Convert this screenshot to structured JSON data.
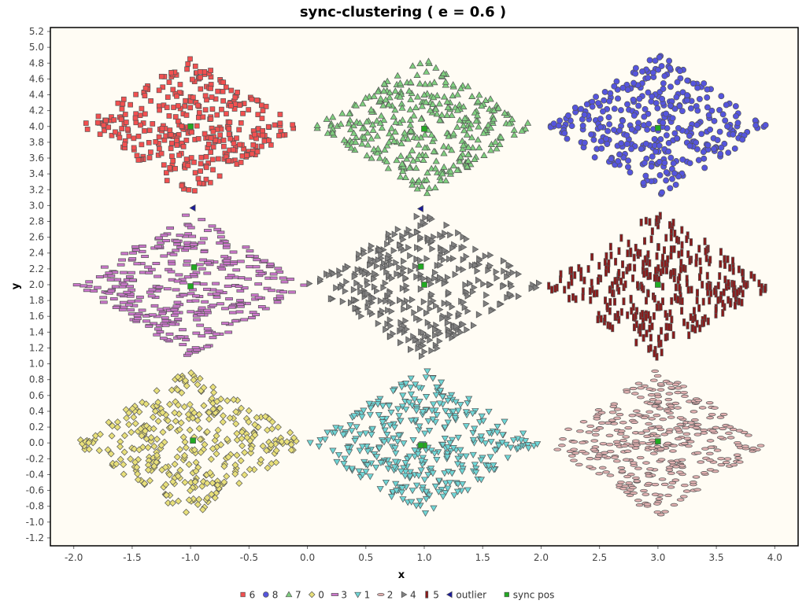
{
  "chart_data": {
    "type": "scatter",
    "title": "sync-clustering ( e = 0.6 )",
    "xlabel": "x",
    "ylabel": "y",
    "xlim": [
      -2.2,
      4.2
    ],
    "ylim": [
      -1.3,
      5.25
    ],
    "xticks": [
      "-2.0",
      "-1.5",
      "-1.0",
      "-0.5",
      "0.0",
      "0.5",
      "1.0",
      "1.5",
      "2.0",
      "2.5",
      "3.0",
      "3.5",
      "4.0"
    ],
    "yticks": [
      "-1.2",
      "-1.0",
      "-0.8",
      "-0.6",
      "-0.4",
      "-0.2",
      "0.0",
      "0.2",
      "0.4",
      "0.6",
      "0.8",
      "1.0",
      "1.2",
      "1.4",
      "1.6",
      "1.8",
      "2.0",
      "2.2",
      "2.4",
      "2.6",
      "2.8",
      "3.0",
      "3.2",
      "3.4",
      "3.6",
      "3.8",
      "4.0",
      "4.2",
      "4.4",
      "4.6",
      "4.8",
      "5.0",
      "5.2"
    ],
    "background": "#fffcf4",
    "legend_position": "bottom",
    "clusters": [
      {
        "name": "6",
        "shape": "square",
        "color": "#f25050",
        "center": [
          -1.0,
          4.0
        ],
        "hx": 0.95,
        "hy": 0.87
      },
      {
        "name": "8",
        "shape": "circle",
        "color": "#5555dd",
        "center": [
          3.0,
          4.0
        ],
        "hx": 0.95,
        "hy": 0.93
      },
      {
        "name": "7",
        "shape": "triangle-up",
        "color": "#7fcf7f",
        "center": [
          1.0,
          4.0
        ],
        "hx": 0.95,
        "hy": 0.87
      },
      {
        "name": "0",
        "shape": "diamond",
        "color": "#e8e07a",
        "center": [
          -1.0,
          0.0
        ],
        "hx": 1.0,
        "hy": 0.95
      },
      {
        "name": "3",
        "shape": "hrect",
        "color": "#cc77cc",
        "center": [
          -1.0,
          2.0
        ],
        "hx": 0.98,
        "hy": 0.93
      },
      {
        "name": "1",
        "shape": "triangle-down",
        "color": "#6fd6d6",
        "center": [
          1.0,
          0.0
        ],
        "hx": 1.0,
        "hy": 0.95
      },
      {
        "name": "2",
        "shape": "ellipse",
        "color": "#e0b0b0",
        "center": [
          3.0,
          0.0
        ],
        "hx": 0.95,
        "hy": 0.95
      },
      {
        "name": "4",
        "shape": "triangle-right",
        "color": "#808080",
        "center": [
          1.0,
          2.0
        ],
        "hx": 1.0,
        "hy": 0.93
      },
      {
        "name": "5",
        "shape": "vrect",
        "color": "#8b1a1a",
        "center": [
          3.0,
          2.0
        ],
        "hx": 0.98,
        "hy": 0.93
      }
    ],
    "outliers": {
      "name": "outlier",
      "shape": "triangle-left",
      "color": "#1a1a99",
      "points": [
        [
          -0.98,
          2.97
        ],
        [
          0.97,
          2.96
        ]
      ]
    },
    "sync_pos": {
      "name": "sync pos",
      "shape": "square",
      "color": "#22aa22",
      "points": [
        [
          -1.0,
          4.0
        ],
        [
          1.0,
          3.97
        ],
        [
          3.0,
          3.98
        ],
        [
          -0.97,
          2.22
        ],
        [
          -1.0,
          1.98
        ],
        [
          0.97,
          2.23
        ],
        [
          1.0,
          2.0
        ],
        [
          3.0,
          2.0
        ],
        [
          -0.98,
          0.03
        ],
        [
          1.0,
          -0.03
        ],
        [
          0.97,
          -0.03
        ],
        [
          3.0,
          0.02
        ]
      ]
    },
    "legend": [
      "6",
      "8",
      "7",
      "0",
      "3",
      "1",
      "2",
      "4",
      "5",
      "outlier",
      "sync pos"
    ]
  }
}
